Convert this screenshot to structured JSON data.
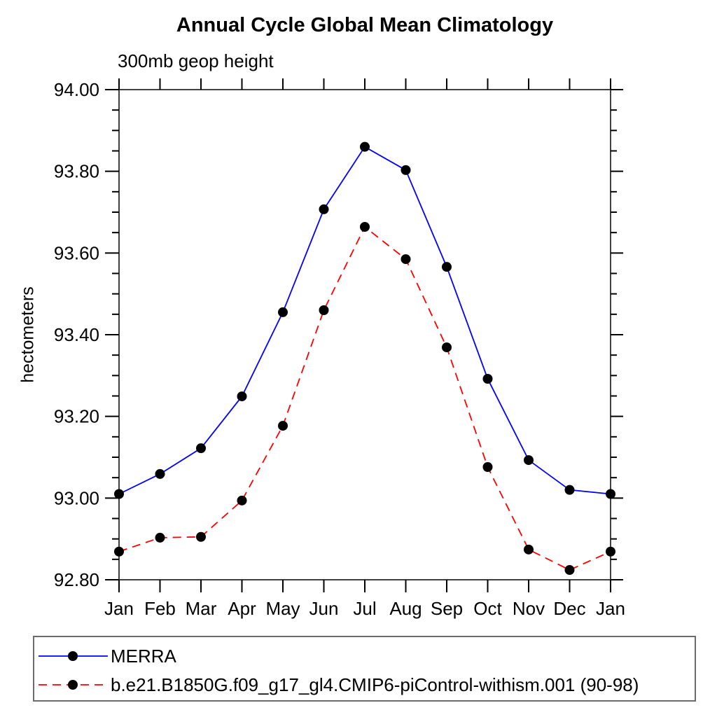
{
  "title": "Annual Cycle Global Mean Climatology",
  "subtitle": "300mb geop height",
  "chart_data": {
    "type": "line",
    "title": "Annual Cycle Global Mean Climatology",
    "subtitle": "300mb geop height",
    "xlabel": "",
    "ylabel": "hectometers",
    "x_categories": [
      "Jan",
      "Feb",
      "Mar",
      "Apr",
      "May",
      "Jun",
      "Jul",
      "Aug",
      "Sep",
      "Oct",
      "Nov",
      "Dec",
      "Jan"
    ],
    "ylim": [
      92.8,
      94.0
    ],
    "y_major_step": 0.2,
    "y_minor_step": 0.05,
    "y_tick_labels": [
      "92.80",
      "93.00",
      "93.20",
      "93.40",
      "93.60",
      "93.80",
      "94.00"
    ],
    "grid": false,
    "legend_position": "bottom-left-box",
    "series": [
      {
        "name": "MERRA",
        "line_color": "#0000ff",
        "line_style": "solid",
        "marker": "filled-circle",
        "marker_color": "#000000",
        "values": [
          93.01,
          93.059,
          93.122,
          93.249,
          93.455,
          93.707,
          93.86,
          93.803,
          93.566,
          93.292,
          93.093,
          93.02,
          93.01
        ]
      },
      {
        "name": "b.e21.B1850G.f09_g17_gl4.CMIP6-piControl-withism.001 (90-98)",
        "line_color": "#ff0000",
        "line_style": "dashed",
        "marker": "filled-circle",
        "marker_color": "#000000",
        "values": [
          92.869,
          92.903,
          92.905,
          92.994,
          93.177,
          93.46,
          93.664,
          93.585,
          93.369,
          93.076,
          92.874,
          92.824,
          92.869
        ]
      }
    ],
    "axis_color": "#404040",
    "tick_color": "#000000"
  }
}
